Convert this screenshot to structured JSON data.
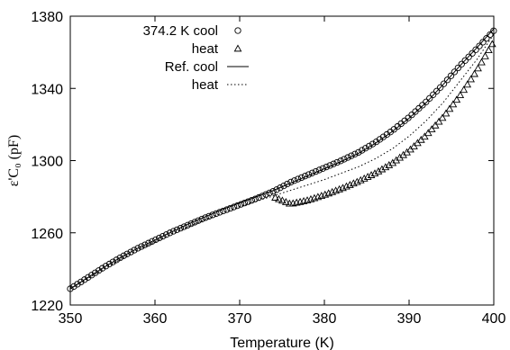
{
  "chart_data": {
    "type": "scatter",
    "title": "",
    "xlabel": "Temperature (K)",
    "ylabel": "ε'C₀ (pF)",
    "xlim": [
      350,
      400
    ],
    "ylim": [
      1220,
      1380
    ],
    "xticks": [
      "350",
      "360",
      "370",
      "380",
      "390",
      "400"
    ],
    "yticks": [
      "1220",
      "1260",
      "1300",
      "1340",
      "1380"
    ],
    "grid": false,
    "legend_position": "top-left",
    "legend": [
      {
        "label": "374.2 K cool",
        "marker": "circle"
      },
      {
        "label": "heat",
        "marker": "triangle"
      },
      {
        "label": "Ref. cool",
        "line": "solid"
      },
      {
        "label": "heat",
        "line": "dotted"
      }
    ],
    "series": [
      {
        "name": "374.2 K cool",
        "style": "circle",
        "x": [
          350,
          352,
          354,
          356,
          358,
          360,
          362,
          364,
          366,
          368,
          370,
          372,
          374.2,
          376,
          378,
          380,
          382,
          384,
          386,
          388,
          390,
          392,
          394,
          396,
          398,
          400
        ],
        "y": [
          1229,
          1235,
          1241,
          1246.5,
          1251.5,
          1256,
          1260.5,
          1264.5,
          1268.5,
          1272,
          1275.5,
          1279,
          1283.5,
          1288,
          1292,
          1296,
          1300,
          1304.5,
          1310,
          1316.5,
          1324,
          1332.5,
          1342,
          1352.5,
          1362,
          1372
        ]
      },
      {
        "name": "heat",
        "style": "triangle",
        "x": [
          374.2,
          376,
          378,
          380,
          382,
          384,
          386,
          388,
          390,
          392,
          394,
          396,
          398,
          400
        ],
        "y": [
          1279.5,
          1276,
          1278,
          1281,
          1284.5,
          1288.5,
          1293,
          1298.5,
          1305.5,
          1314,
          1324,
          1336,
          1350,
          1366
        ]
      },
      {
        "name": "Ref. cool",
        "style": "solid",
        "x": [
          350,
          352,
          354,
          356,
          358,
          360,
          362,
          364,
          366,
          368,
          370,
          372,
          374,
          376,
          378,
          380,
          382,
          384,
          386,
          388,
          390,
          392,
          394,
          396,
          398,
          400
        ],
        "y": [
          1229,
          1235,
          1241,
          1246.5,
          1251.5,
          1256,
          1260.5,
          1265,
          1269,
          1273,
          1276.5,
          1280,
          1283.5,
          1287.5,
          1291.5,
          1295.5,
          1299.5,
          1304,
          1309.5,
          1316,
          1323.5,
          1332,
          1342,
          1352.5,
          1362.5,
          1373
        ]
      },
      {
        "name": "heat",
        "style": "dotted",
        "x": [
          350,
          352,
          354,
          356,
          358,
          360,
          362,
          364,
          366,
          368,
          370,
          372,
          374,
          376,
          378,
          380,
          382,
          384,
          386,
          388,
          390,
          392,
          394,
          396,
          398,
          400
        ],
        "y": [
          1229,
          1234.5,
          1240,
          1245.5,
          1250.5,
          1255,
          1259.5,
          1263.5,
          1267.5,
          1271,
          1274.5,
          1277.5,
          1280.5,
          1283.5,
          1286.5,
          1289.5,
          1293,
          1296.5,
          1301,
          1306.5,
          1313.5,
          1322,
          1332,
          1344,
          1356,
          1370
        ]
      }
    ]
  }
}
